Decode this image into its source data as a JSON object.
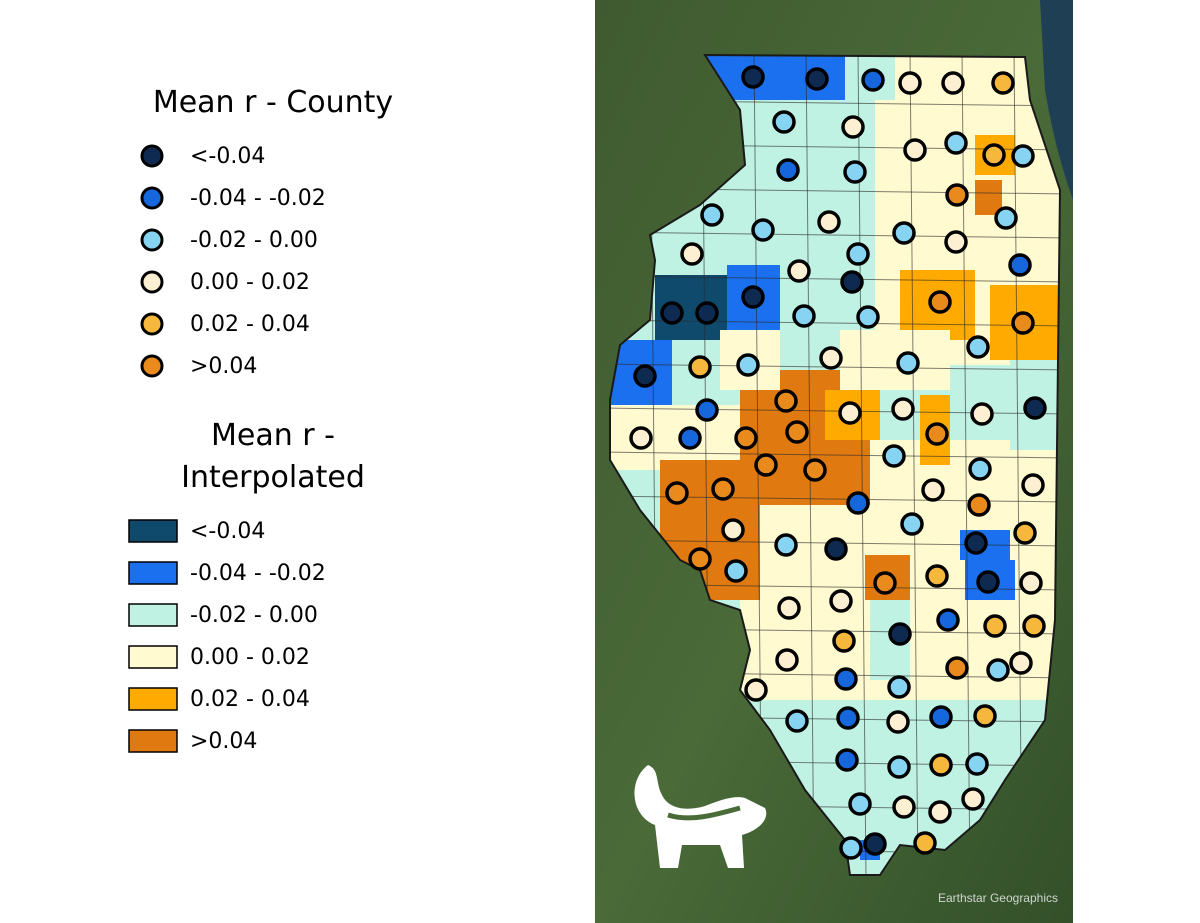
{
  "legend_county": {
    "title": "Mean r - County",
    "items": [
      {
        "label": "<-0.04",
        "color": "#0e2a50"
      },
      {
        "label": "-0.04 - -0.02",
        "color": "#1667dc"
      },
      {
        "label": "-0.02 - 0.00",
        "color": "#86d3f2"
      },
      {
        "label": "0.00 - 0.02",
        "color": "#fdf0d2"
      },
      {
        "label": "0.02 - 0.04",
        "color": "#f5b83c"
      },
      {
        "label": ">0.04",
        "color": "#e88a1c"
      }
    ]
  },
  "legend_interpolated": {
    "title_lines": [
      "Mean r -",
      "Interpolated"
    ],
    "items": [
      {
        "label": "<-0.04",
        "color": "#0f4a6c"
      },
      {
        "label": "-0.04 - -0.02",
        "color": "#1a70ee"
      },
      {
        "label": "-0.02 - 0.00",
        "color": "#bff2e2"
      },
      {
        "label": "0.00 - 0.02",
        "color": "#fffad0"
      },
      {
        "label": "0.02 - 0.04",
        "color": "#ffaa00"
      },
      {
        "label": ">0.04",
        "color": "#e07a10"
      }
    ]
  },
  "attribution": "Earthstar Geographics"
}
